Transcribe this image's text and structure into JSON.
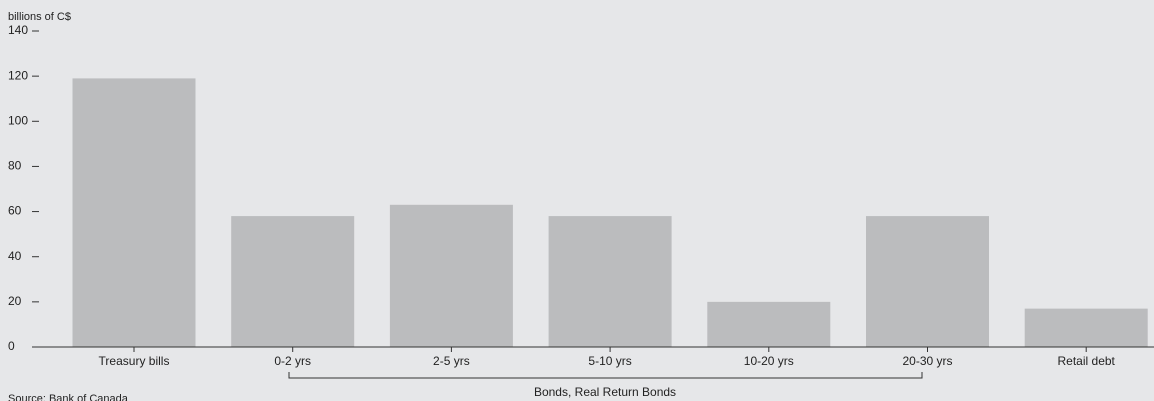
{
  "chart_data": {
    "type": "bar",
    "y_label": "billions of C$",
    "categories": [
      "Treasury bills",
      "0-2 yrs",
      "2-5 yrs",
      "5-10 yrs",
      "10-20 yrs",
      "20-30 yrs",
      "Retail debt"
    ],
    "values": [
      119,
      58,
      63,
      58,
      20,
      58,
      17
    ],
    "color": "#bbbcbe",
    "ylim": [
      0,
      140
    ],
    "yticks": [
      0,
      20,
      40,
      60,
      80,
      100,
      120,
      140
    ],
    "group_label": "Bonds, Real Return Bonds",
    "source": "Source: Bank of Canada"
  }
}
